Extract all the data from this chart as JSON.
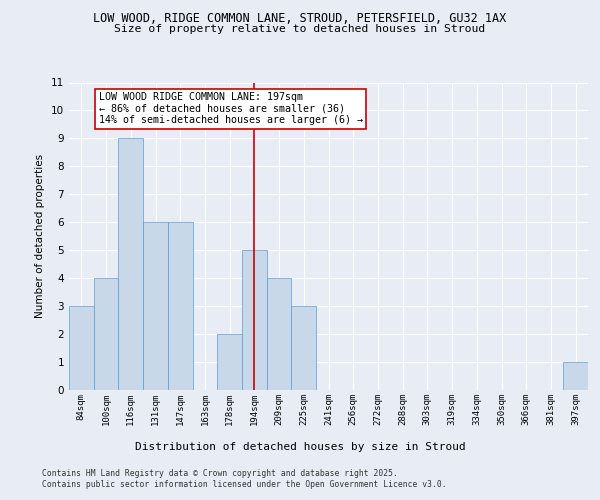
{
  "title_line1": "LOW WOOD, RIDGE COMMON LANE, STROUD, PETERSFIELD, GU32 1AX",
  "title_line2": "Size of property relative to detached houses in Stroud",
  "xlabel": "Distribution of detached houses by size in Stroud",
  "ylabel": "Number of detached properties",
  "categories": [
    "84sqm",
    "100sqm",
    "116sqm",
    "131sqm",
    "147sqm",
    "163sqm",
    "178sqm",
    "194sqm",
    "209sqm",
    "225sqm",
    "241sqm",
    "256sqm",
    "272sqm",
    "288sqm",
    "303sqm",
    "319sqm",
    "334sqm",
    "350sqm",
    "366sqm",
    "381sqm",
    "397sqm"
  ],
  "values": [
    3,
    4,
    9,
    6,
    6,
    0,
    2,
    5,
    4,
    3,
    0,
    0,
    0,
    0,
    0,
    0,
    0,
    0,
    0,
    0,
    1
  ],
  "bar_color": "#c8d8e8",
  "bar_edge_color": "#5b9bd5",
  "highlight_index": 7,
  "highlight_line_color": "#cc0000",
  "ylim": [
    0,
    11
  ],
  "yticks": [
    0,
    1,
    2,
    3,
    4,
    5,
    6,
    7,
    8,
    9,
    10,
    11
  ],
  "annotation_title": "LOW WOOD RIDGE COMMON LANE: 197sqm",
  "annotation_line1": "← 86% of detached houses are smaller (36)",
  "annotation_line2": "14% of semi-detached houses are larger (6) →",
  "annotation_box_color": "#ffffff",
  "annotation_box_edgecolor": "#cc0000",
  "footer_line1": "Contains HM Land Registry data © Crown copyright and database right 2025.",
  "footer_line2": "Contains public sector information licensed under the Open Government Licence v3.0.",
  "bg_color": "#e8edf5",
  "plot_bg_color": "#e8edf5",
  "grid_color": "#ffffff"
}
